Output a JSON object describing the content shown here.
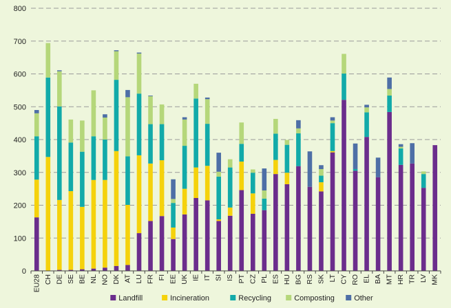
{
  "chart_data": {
    "type": "bar",
    "stacked": true,
    "title": "",
    "xlabel": "",
    "ylabel": "",
    "ylim": [
      0,
      800
    ],
    "yticks": [
      0,
      100,
      200,
      300,
      400,
      500,
      600,
      700,
      800
    ],
    "grid": true,
    "legend_position": "bottom",
    "categories": [
      "EU28",
      "CH",
      "DE",
      "SE",
      "BE",
      "NL",
      "NO",
      "DK",
      "AT",
      "LU",
      "FR",
      "FI",
      "EE",
      "UK",
      "IE",
      "IT",
      "SI",
      "IS",
      "PT",
      "CZ",
      "PL",
      "ES",
      "HU",
      "BG",
      "RS",
      "SK",
      "LT",
      "CY",
      "RO",
      "EL",
      "BA",
      "MT",
      "HR",
      "TR",
      "LV",
      "MK"
    ],
    "series": [
      {
        "name": "Landfill",
        "color": "#6b2d8c",
        "values": [
          163,
          0,
          3,
          3,
          5,
          7,
          10,
          15,
          18,
          115,
          152,
          167,
          97,
          172,
          222,
          215,
          152,
          168,
          246,
          174,
          185,
          295,
          264,
          319,
          256,
          242,
          361,
          521,
          305,
          408,
          285,
          484,
          323,
          327,
          253,
          383
        ]
      },
      {
        "name": "Incineration",
        "color": "#f5d20c",
        "values": [
          115,
          347,
          213,
          240,
          190,
          270,
          267,
          350,
          183,
          237,
          175,
          170,
          35,
          78,
          93,
          105,
          5,
          25,
          87,
          62,
          0,
          43,
          35,
          0,
          0,
          28,
          4,
          0,
          0,
          0,
          0,
          0,
          0,
          0,
          0,
          0
        ]
      },
      {
        "name": "Recycling",
        "color": "#12aaa9",
        "values": [
          132,
          242,
          285,
          148,
          168,
          133,
          123,
          217,
          148,
          188,
          120,
          110,
          75,
          131,
          210,
          128,
          130,
          122,
          54,
          63,
          35,
          80,
          85,
          100,
          0,
          20,
          85,
          80,
          5,
          75,
          0,
          50,
          50,
          0,
          42,
          0
        ]
      },
      {
        "name": "Composting",
        "color": "#b5d77a",
        "values": [
          70,
          105,
          107,
          70,
          95,
          140,
          67,
          87,
          180,
          122,
          85,
          60,
          12,
          80,
          45,
          75,
          15,
          25,
          65,
          10,
          25,
          45,
          15,
          15,
          0,
          20,
          8,
          60,
          0,
          15,
          0,
          20,
          5,
          0,
          8,
          0
        ]
      },
      {
        "name": "Other",
        "color": "#4e6fa6",
        "values": [
          10,
          0,
          3,
          0,
          0,
          0,
          10,
          3,
          22,
          3,
          2,
          0,
          60,
          7,
          0,
          5,
          58,
          0,
          0,
          0,
          67,
          0,
          0,
          25,
          108,
          12,
          10,
          0,
          78,
          8,
          60,
          35,
          8,
          62,
          0,
          0
        ]
      }
    ]
  }
}
